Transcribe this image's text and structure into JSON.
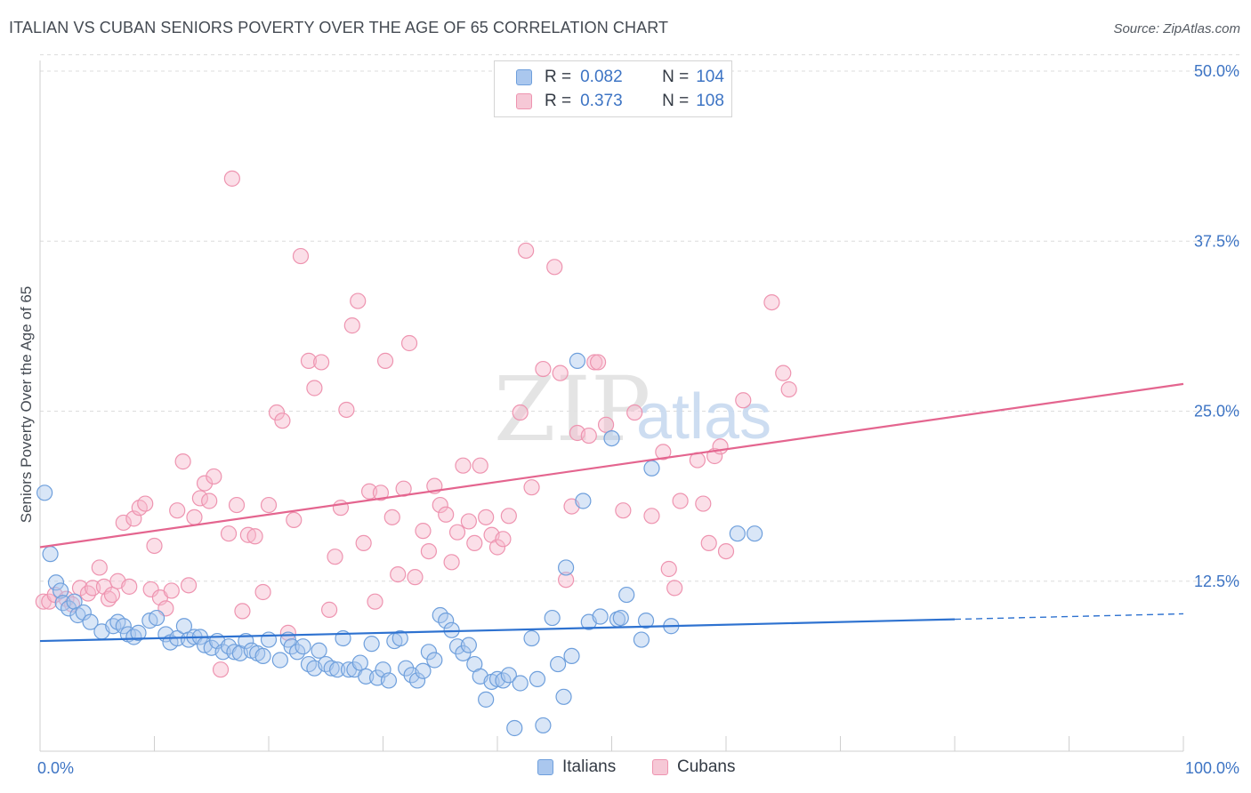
{
  "title": "ITALIAN VS CUBAN SENIORS POVERTY OVER THE AGE OF 65 CORRELATION CHART",
  "source": "Source: ZipAtlas.com",
  "watermark": {
    "zip": "ZIP",
    "atlas": "atlas"
  },
  "legend": {
    "rows": [
      {
        "r_label": "R =",
        "r_value": "0.082",
        "n_label": "N =",
        "n_value": "104"
      },
      {
        "r_label": "R =",
        "r_value": "0.373",
        "n_label": "N =",
        "n_value": "108"
      }
    ]
  },
  "colors": {
    "italians_fill": "#aac7ee",
    "italians_stroke": "#6e9fdc",
    "italians_line": "#2e72d0",
    "cubans_fill": "#f6b9cb",
    "cubans_stroke": "#ee94b0",
    "cubans_line": "#e4658f",
    "grid": "#dcdcdc",
    "tick_label": "#3d74c4"
  },
  "chart_data": {
    "type": "scatter",
    "title": "ITALIAN VS CUBAN SENIORS POVERTY OVER THE AGE OF 65 CORRELATION CHART",
    "xlabel": "",
    "ylabel": "Seniors Poverty Over the Age of 65",
    "xlim": [
      0,
      100
    ],
    "ylim": [
      0,
      52
    ],
    "y_ticks": [
      12.5,
      25.0,
      37.5,
      50.0
    ],
    "y_tick_labels": [
      "12.5%",
      "25.0%",
      "37.5%",
      "50.0%"
    ],
    "x_tick_labels": [
      "0.0%",
      "100.0%"
    ],
    "grid": true,
    "legend_position": "top-center",
    "series": [
      {
        "name": "Italians",
        "color": "#6e9fdc",
        "trend": {
          "x": [
            0,
            80
          ],
          "y": [
            8.1,
            9.7
          ],
          "dashed_to": [
            100,
            10.1
          ]
        },
        "points": [
          [
            0.4,
            19.0
          ],
          [
            0.9,
            14.5
          ],
          [
            1.4,
            12.4
          ],
          [
            1.8,
            11.8
          ],
          [
            2.0,
            10.9
          ],
          [
            2.5,
            10.5
          ],
          [
            3.0,
            11.0
          ],
          [
            3.3,
            10.0
          ],
          [
            3.8,
            10.2
          ],
          [
            4.4,
            9.5
          ],
          [
            5.4,
            8.8
          ],
          [
            6.4,
            9.2
          ],
          [
            6.8,
            9.5
          ],
          [
            7.3,
            9.2
          ],
          [
            7.7,
            8.6
          ],
          [
            8.2,
            8.4
          ],
          [
            8.6,
            8.7
          ],
          [
            9.6,
            9.6
          ],
          [
            10.2,
            9.8
          ],
          [
            11.0,
            8.6
          ],
          [
            11.4,
            8.0
          ],
          [
            12.0,
            8.3
          ],
          [
            12.6,
            9.2
          ],
          [
            13.0,
            8.2
          ],
          [
            13.5,
            8.4
          ],
          [
            14.0,
            8.4
          ],
          [
            14.4,
            7.8
          ],
          [
            15.0,
            7.6
          ],
          [
            15.5,
            8.1
          ],
          [
            16.0,
            7.3
          ],
          [
            16.5,
            7.7
          ],
          [
            17.0,
            7.3
          ],
          [
            17.5,
            7.2
          ],
          [
            18.0,
            8.1
          ],
          [
            18.5,
            7.4
          ],
          [
            19.0,
            7.2
          ],
          [
            19.5,
            7.0
          ],
          [
            20.0,
            8.2
          ],
          [
            21.0,
            6.7
          ],
          [
            21.7,
            8.2
          ],
          [
            22.0,
            7.7
          ],
          [
            22.5,
            7.3
          ],
          [
            23.0,
            7.7
          ],
          [
            23.5,
            6.4
          ],
          [
            24.0,
            6.1
          ],
          [
            24.4,
            7.4
          ],
          [
            25.0,
            6.4
          ],
          [
            25.5,
            6.1
          ],
          [
            26.0,
            6.0
          ],
          [
            26.5,
            8.3
          ],
          [
            27.0,
            6.0
          ],
          [
            27.5,
            6.0
          ],
          [
            28.0,
            6.5
          ],
          [
            28.5,
            5.5
          ],
          [
            29.0,
            7.9
          ],
          [
            29.5,
            5.4
          ],
          [
            30.0,
            6.0
          ],
          [
            30.5,
            5.2
          ],
          [
            31.0,
            8.1
          ],
          [
            31.5,
            8.3
          ],
          [
            32.0,
            6.1
          ],
          [
            32.5,
            5.6
          ],
          [
            33.0,
            5.2
          ],
          [
            33.5,
            5.9
          ],
          [
            34.0,
            7.3
          ],
          [
            34.5,
            6.7
          ],
          [
            35.0,
            10.0
          ],
          [
            35.5,
            9.6
          ],
          [
            36.0,
            8.9
          ],
          [
            36.5,
            7.7
          ],
          [
            37.0,
            7.2
          ],
          [
            37.5,
            7.8
          ],
          [
            38.0,
            6.4
          ],
          [
            38.5,
            5.5
          ],
          [
            39.0,
            3.8
          ],
          [
            39.5,
            5.1
          ],
          [
            40.0,
            5.3
          ],
          [
            40.5,
            5.2
          ],
          [
            41.0,
            5.6
          ],
          [
            41.5,
            1.7
          ],
          [
            42.0,
            5.0
          ],
          [
            43.0,
            8.3
          ],
          [
            43.5,
            5.3
          ],
          [
            44.0,
            1.9
          ],
          [
            44.8,
            9.8
          ],
          [
            45.3,
            6.4
          ],
          [
            45.8,
            4.0
          ],
          [
            46.5,
            7.0
          ],
          [
            46.0,
            13.5
          ],
          [
            47.0,
            28.7
          ],
          [
            47.5,
            18.4
          ],
          [
            48.0,
            9.5
          ],
          [
            49.0,
            9.9
          ],
          [
            50.5,
            9.7
          ],
          [
            50.0,
            23.0
          ],
          [
            50.8,
            9.8
          ],
          [
            51.3,
            11.5
          ],
          [
            52.6,
            8.2
          ],
          [
            53.0,
            9.6
          ],
          [
            53.5,
            20.8
          ],
          [
            55.2,
            9.2
          ],
          [
            61.0,
            16.0
          ],
          [
            62.5,
            16.0
          ]
        ]
      },
      {
        "name": "Cubans",
        "color": "#ee94b0",
        "trend": {
          "x": [
            0,
            100
          ],
          "y": [
            15.0,
            27.0
          ]
        },
        "points": [
          [
            0.3,
            11.0
          ],
          [
            0.8,
            11.0
          ],
          [
            1.3,
            11.5
          ],
          [
            2.3,
            11.2
          ],
          [
            2.8,
            10.8
          ],
          [
            3.5,
            12.0
          ],
          [
            4.2,
            11.6
          ],
          [
            4.6,
            12.0
          ],
          [
            5.2,
            13.5
          ],
          [
            5.6,
            12.1
          ],
          [
            6.0,
            11.2
          ],
          [
            6.3,
            11.5
          ],
          [
            6.8,
            12.5
          ],
          [
            7.3,
            16.8
          ],
          [
            7.8,
            12.1
          ],
          [
            8.2,
            17.1
          ],
          [
            8.7,
            17.9
          ],
          [
            9.2,
            18.2
          ],
          [
            9.7,
            11.9
          ],
          [
            10.0,
            15.1
          ],
          [
            10.5,
            11.3
          ],
          [
            11.0,
            10.5
          ],
          [
            11.5,
            11.8
          ],
          [
            12.0,
            17.7
          ],
          [
            12.5,
            21.3
          ],
          [
            13.0,
            12.2
          ],
          [
            13.5,
            17.2
          ],
          [
            14.0,
            18.6
          ],
          [
            14.4,
            19.7
          ],
          [
            14.8,
            18.4
          ],
          [
            15.2,
            20.2
          ],
          [
            15.8,
            6.0
          ],
          [
            16.5,
            16.0
          ],
          [
            16.8,
            42.1
          ],
          [
            17.2,
            18.1
          ],
          [
            17.7,
            10.3
          ],
          [
            18.2,
            15.9
          ],
          [
            18.8,
            15.8
          ],
          [
            19.5,
            11.7
          ],
          [
            20.0,
            18.1
          ],
          [
            20.7,
            24.9
          ],
          [
            21.2,
            24.3
          ],
          [
            21.7,
            8.7
          ],
          [
            22.2,
            17.0
          ],
          [
            22.8,
            36.4
          ],
          [
            23.5,
            28.7
          ],
          [
            24.0,
            26.7
          ],
          [
            24.6,
            28.6
          ],
          [
            25.3,
            10.4
          ],
          [
            25.8,
            14.3
          ],
          [
            26.3,
            17.9
          ],
          [
            26.8,
            25.1
          ],
          [
            27.3,
            31.3
          ],
          [
            27.8,
            33.1
          ],
          [
            28.3,
            15.3
          ],
          [
            28.8,
            19.1
          ],
          [
            29.3,
            11.0
          ],
          [
            29.8,
            19.0
          ],
          [
            30.2,
            28.7
          ],
          [
            30.8,
            17.2
          ],
          [
            31.3,
            13.0
          ],
          [
            31.8,
            19.3
          ],
          [
            32.3,
            30.0
          ],
          [
            32.8,
            12.8
          ],
          [
            33.5,
            16.2
          ],
          [
            34.0,
            14.7
          ],
          [
            34.5,
            19.5
          ],
          [
            35.0,
            18.1
          ],
          [
            35.5,
            17.4
          ],
          [
            36.0,
            13.9
          ],
          [
            36.5,
            16.1
          ],
          [
            37.0,
            21.0
          ],
          [
            37.5,
            16.9
          ],
          [
            38.0,
            15.3
          ],
          [
            38.5,
            21.0
          ],
          [
            39.0,
            17.2
          ],
          [
            39.5,
            15.9
          ],
          [
            40.0,
            15.0
          ],
          [
            40.5,
            15.6
          ],
          [
            41.0,
            17.3
          ],
          [
            42.0,
            24.9
          ],
          [
            42.5,
            36.8
          ],
          [
            43.0,
            19.4
          ],
          [
            44.0,
            28.1
          ],
          [
            45.0,
            35.6
          ],
          [
            45.5,
            27.8
          ],
          [
            46.0,
            12.6
          ],
          [
            46.5,
            18.0
          ],
          [
            47.0,
            23.4
          ],
          [
            48.0,
            23.2
          ],
          [
            48.5,
            28.6
          ],
          [
            48.8,
            28.6
          ],
          [
            49.5,
            24.0
          ],
          [
            51.0,
            17.7
          ],
          [
            52.0,
            24.9
          ],
          [
            53.5,
            17.3
          ],
          [
            54.5,
            22.0
          ],
          [
            55.0,
            13.4
          ],
          [
            55.5,
            12.0
          ],
          [
            56.0,
            18.4
          ],
          [
            57.5,
            21.4
          ],
          [
            58.0,
            18.2
          ],
          [
            58.5,
            15.3
          ],
          [
            59.0,
            21.7
          ],
          [
            59.5,
            22.4
          ],
          [
            60.0,
            14.7
          ],
          [
            61.5,
            25.8
          ],
          [
            64.0,
            33.0
          ],
          [
            65.0,
            27.8
          ],
          [
            65.5,
            26.6
          ]
        ]
      }
    ]
  },
  "bottom_legend": [
    {
      "label": "Italians"
    },
    {
      "label": "Cubans"
    }
  ]
}
